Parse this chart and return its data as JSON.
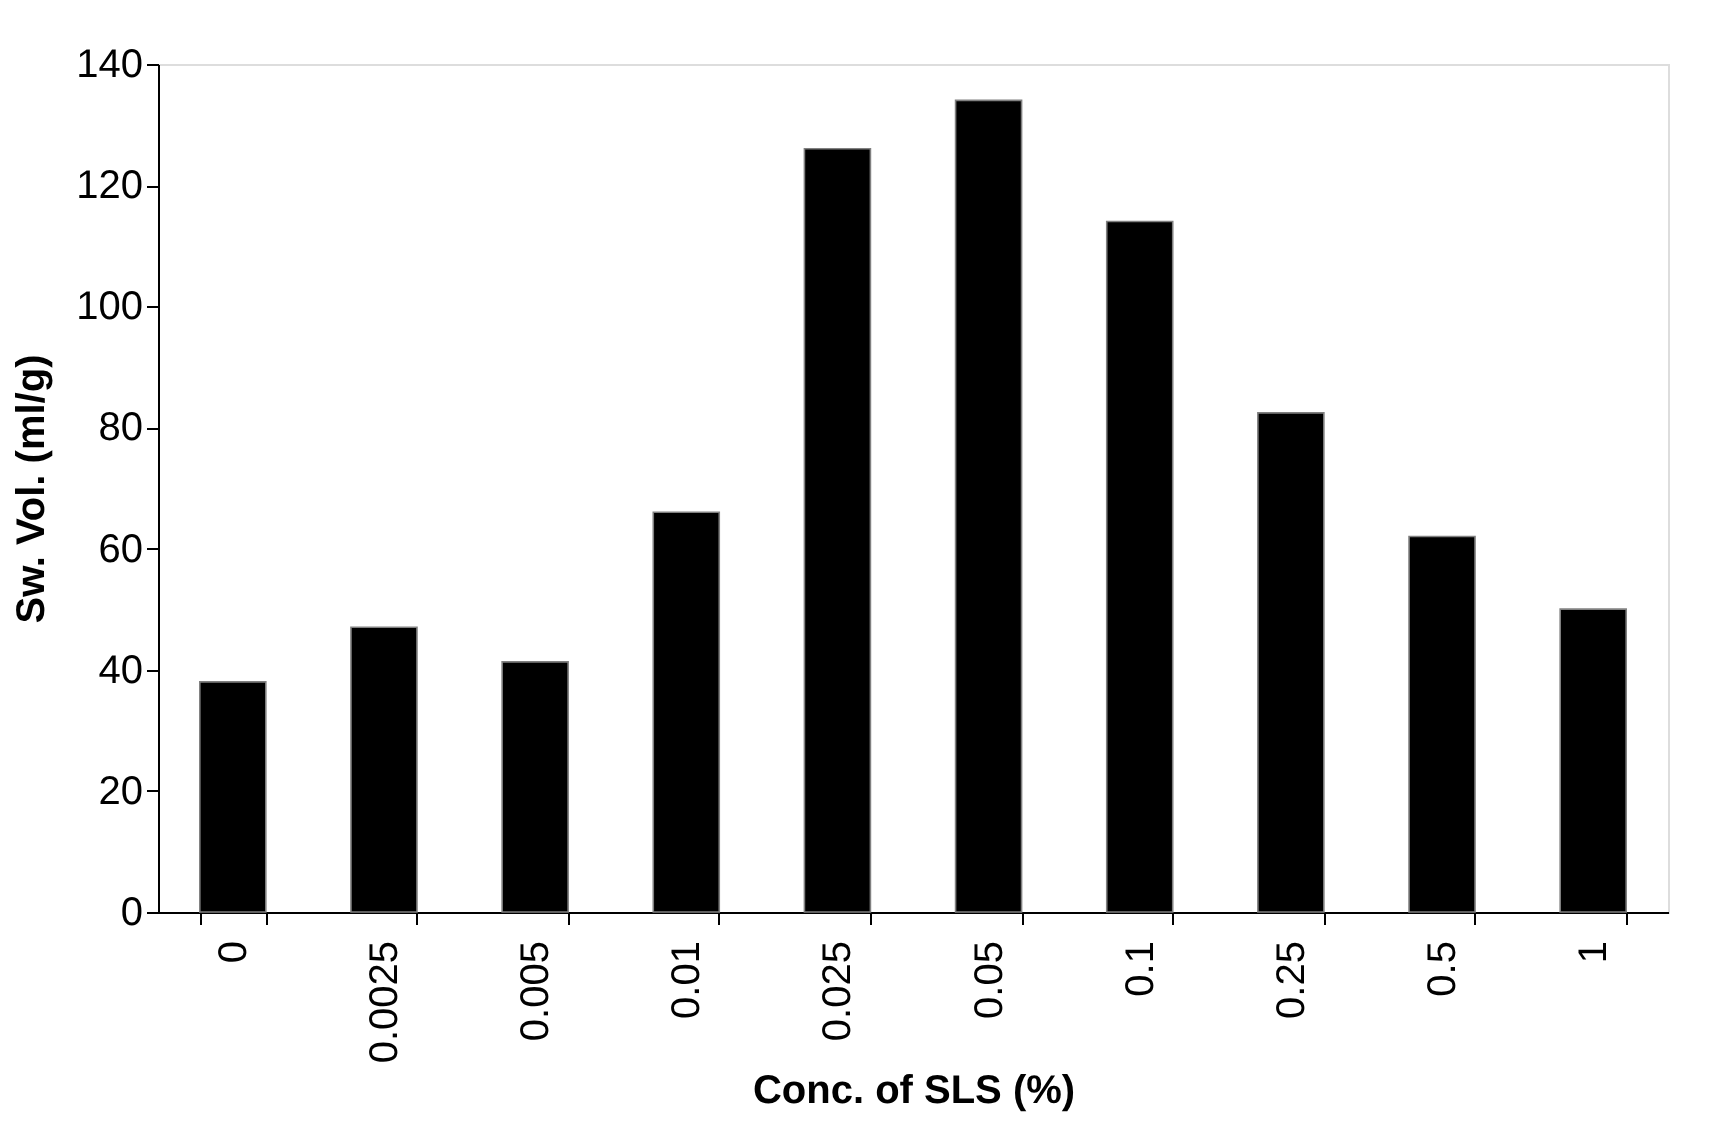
{
  "chart_data": {
    "type": "bar",
    "xlabel": "Conc. of SLS (%)",
    "ylabel": "Sw. Vol. (ml/g)",
    "categories": [
      "0",
      "0.0025",
      "0.005",
      "0.01",
      "0.025",
      "0.05",
      "0.1",
      "0.25",
      "0.5",
      "1"
    ],
    "values": [
      38,
      47,
      41.3,
      66,
      126,
      134,
      114,
      82.4,
      62,
      50
    ],
    "color": "#000000",
    "ylim": [
      0,
      140
    ],
    "yticks": [
      0,
      20,
      40,
      60,
      80,
      100,
      120,
      140
    ],
    "grid": false
  }
}
